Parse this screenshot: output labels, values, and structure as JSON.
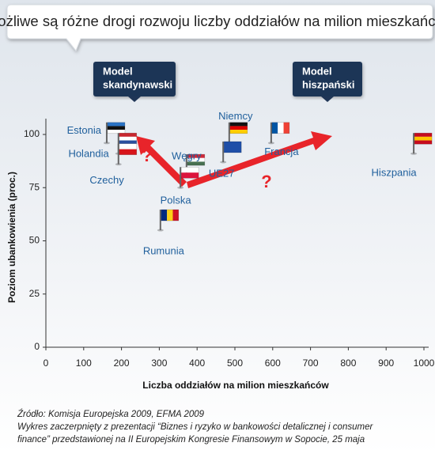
{
  "chart_data": {
    "type": "scatter",
    "title": "Możliwe są różne drogi rozwoju liczby oddziałów na milion mieszkańców",
    "xlabel": "Liczba oddziałów na milion mieszkańców",
    "ylabel": "Poziom ubankowienia (proc.)",
    "labels": [
      "Estonia",
      "Holandia",
      "Czechy",
      "Węgry",
      "Polska",
      "Rumunia",
      "Niemcy",
      "UE27",
      "Francja",
      "Hiszpania"
    ],
    "x": [
      161,
      192,
      192,
      372,
      356,
      303,
      485,
      469,
      596,
      973
    ],
    "values": [
      96,
      91,
      86,
      81,
      75,
      55,
      96,
      87,
      96,
      91
    ],
    "flag_colors": [
      [
        "#2a72c4",
        "#111111",
        "#ffffff"
      ],
      [
        "#c8262e",
        "#ffffff",
        "#2a4f9e"
      ],
      [
        "#ffffff",
        "#d7141a"
      ],
      [
        "#ce2939",
        "#ffffff",
        "#477050"
      ],
      [
        "#ffffff",
        "#dc143c"
      ],
      [
        "#002b7f",
        "#fcd116",
        "#ce1126"
      ],
      [
        "#111111",
        "#dd0000",
        "#ffce00"
      ],
      [
        "#1f4fa8"
      ],
      [
        "#0055a4",
        "#ffffff",
        "#ef4135"
      ],
      [
        "#c60b1e",
        "#ffc400",
        "#c60b1e"
      ]
    ],
    "flag_stripes": [
      "horizontal",
      "horizontal",
      "horizontal",
      "horizontal",
      "horizontal",
      "vertical",
      "horizontal",
      "horizontal",
      "vertical",
      "horizontal"
    ],
    "label_color": "#1f5f9c",
    "xlim": [
      0,
      1000
    ],
    "ylim": [
      0,
      100
    ],
    "xticks": [
      0,
      100,
      200,
      300,
      400,
      500,
      600,
      700,
      800,
      900,
      1000
    ],
    "yticks": [
      0,
      25,
      50,
      75,
      100
    ],
    "annotations": [
      [
        "Model",
        "skandynawski"
      ],
      [
        "Model",
        "hiszpański"
      ]
    ],
    "question_marks": [
      "?",
      "?"
    ],
    "source": [
      "Źródło: Komisja Europejska 2009, EFMA 2009",
      "Wykres zaczerpnięty z prezentacji “Biznes i ryzyko w bankowości detalicznej i consumer",
      "finance” przedstawionej na II Europejskim Kongresie Finansowym w Sopocie, 25 maja"
    ]
  }
}
